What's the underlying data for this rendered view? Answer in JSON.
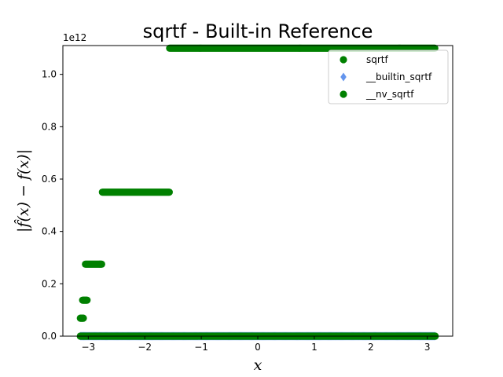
{
  "chart_data": {
    "type": "scatter",
    "title": "sqrtf - Built-in Reference",
    "xlabel": "x",
    "ylabel": "|f̂(x) − f(x)|",
    "y_offset_text": "1e12",
    "xlim": [
      -3.45,
      3.45
    ],
    "ylim": [
      0,
      1.11
    ],
    "x_ticks": [
      -3,
      -2,
      -1,
      0,
      1,
      2,
      3
    ],
    "x_tick_labels": [
      "−3",
      "−2",
      "−1",
      "0",
      "1",
      "2",
      "3"
    ],
    "y_ticks": [
      0.0,
      0.2,
      0.4,
      0.6,
      0.8,
      1.0
    ],
    "y_tick_labels": [
      "0.0",
      "0.2",
      "0.4",
      "0.6",
      "0.8",
      "1.0"
    ],
    "grid": false,
    "legend_position": "top-right",
    "series": [
      {
        "name": "sqrtf",
        "marker": "circle",
        "color": "#008000",
        "segments": [
          {
            "x_start": -3.14,
            "x_end": 3.14,
            "y": 0.0
          },
          {
            "x_start": -3.14,
            "x_end": -3.08,
            "y": 0.0687
          },
          {
            "x_start": -3.1,
            "x_end": -3.02,
            "y": 0.1375
          },
          {
            "x_start": -3.05,
            "x_end": -2.76,
            "y": 0.275
          },
          {
            "x_start": -2.75,
            "x_end": -1.56,
            "y": 0.55
          },
          {
            "x_start": -1.56,
            "x_end": 3.14,
            "y": 1.1
          }
        ]
      },
      {
        "name": "__builtin_sqrtf",
        "marker": "diamond",
        "color": "#6495ed",
        "segments": [
          {
            "x_start": -3.14,
            "x_end": 3.14,
            "y": 0.0
          }
        ]
      },
      {
        "name": "__nv_sqrtf",
        "marker": "circle",
        "color": "#008000",
        "segments": [
          {
            "x_start": -3.14,
            "x_end": 3.14,
            "y": 0.0
          }
        ]
      }
    ]
  }
}
